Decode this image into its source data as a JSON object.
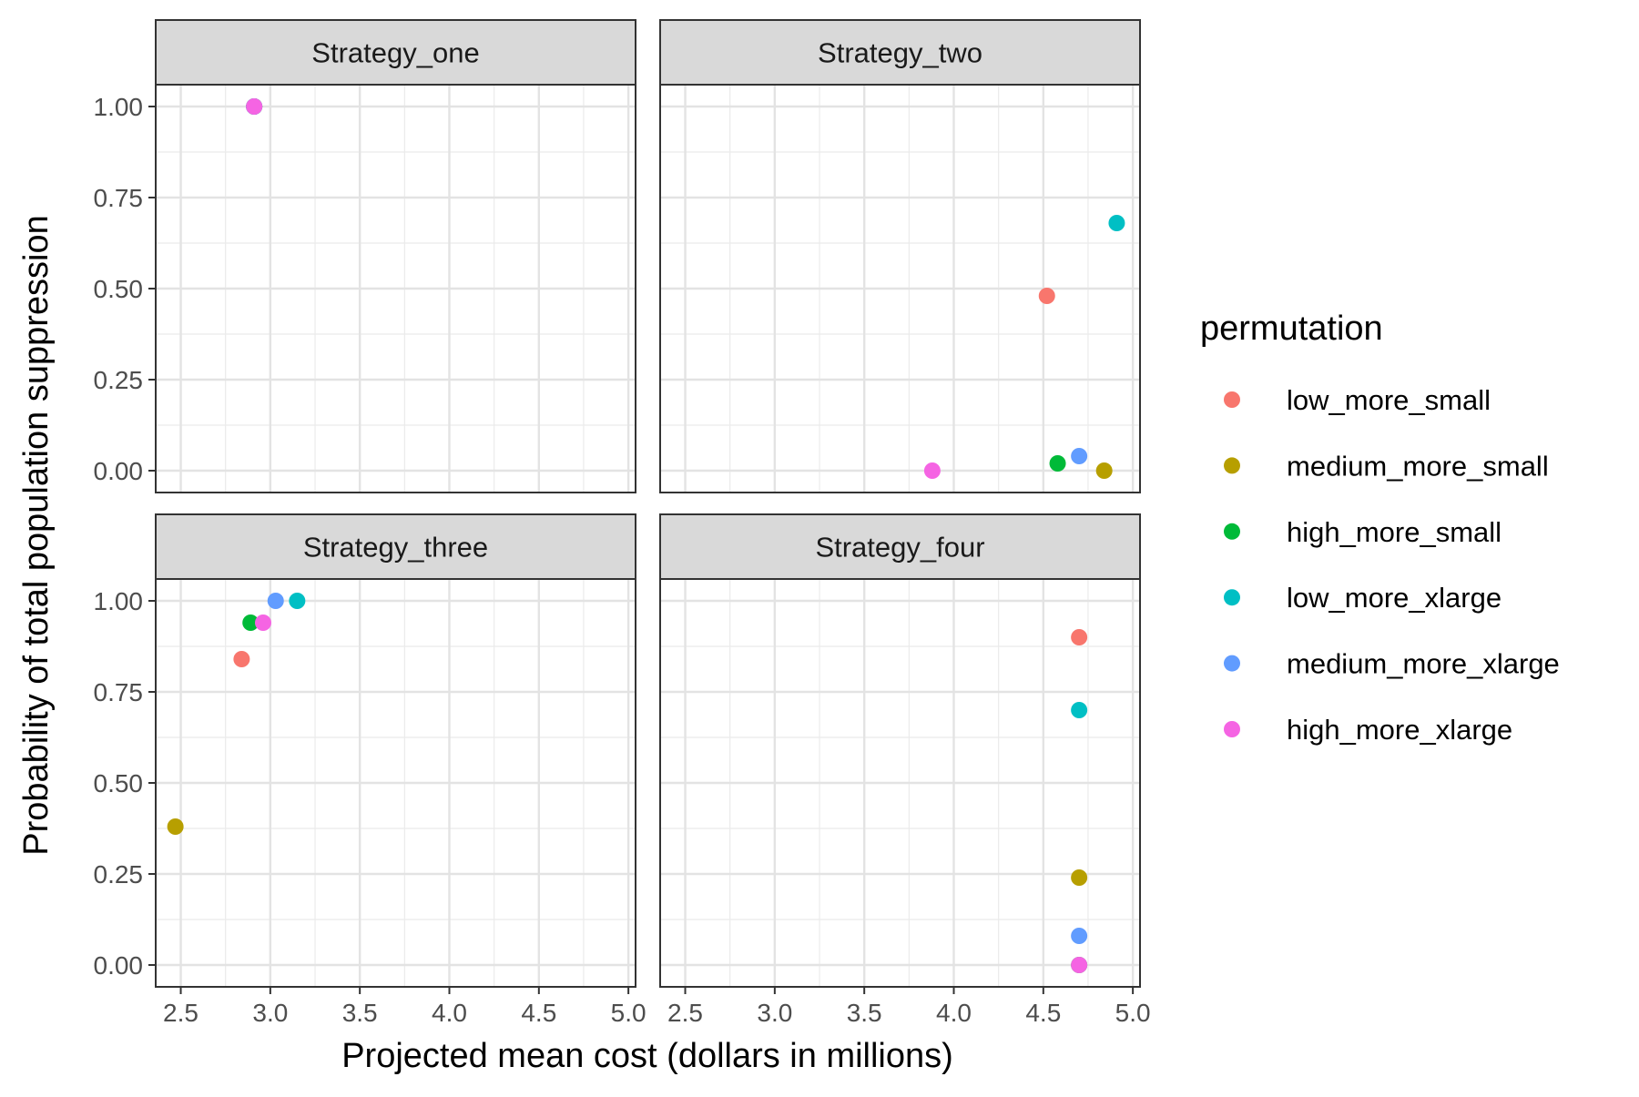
{
  "chart_data": {
    "type": "scatter",
    "facet_layout": "2x2",
    "xlabel": "Projected mean cost (dollars in millions)",
    "ylabel": "Probability of total population suppression",
    "xlim": [
      2.36,
      5.04
    ],
    "ylim": [
      -0.06,
      1.06
    ],
    "x_ticks": [
      "2.5",
      "3.0",
      "3.5",
      "4.0",
      "4.5",
      "5.0"
    ],
    "x_tick_values": [
      2.5,
      3.0,
      3.5,
      4.0,
      4.5,
      5.0
    ],
    "y_ticks": [
      "0.00",
      "0.25",
      "0.50",
      "0.75",
      "1.00"
    ],
    "y_tick_values": [
      0,
      0.25,
      0.5,
      0.75,
      1.0
    ],
    "grid": true,
    "legend": {
      "title": "permutation",
      "placement": "right",
      "entries": [
        {
          "name": "low_more_small",
          "color": "#F8766D"
        },
        {
          "name": "medium_more_small",
          "color": "#B79F00"
        },
        {
          "name": "high_more_small",
          "color": "#00BA38"
        },
        {
          "name": "low_more_xlarge",
          "color": "#00BFC4"
        },
        {
          "name": "medium_more_xlarge",
          "color": "#619CFF"
        },
        {
          "name": "high_more_xlarge",
          "color": "#F564E3"
        }
      ]
    },
    "facets": [
      {
        "title": "Strategy_one",
        "points": [
          {
            "series": "low_more_small",
            "x": 2.91,
            "y": 1.0
          },
          {
            "series": "medium_more_small",
            "x": 2.91,
            "y": 1.0
          },
          {
            "series": "high_more_small",
            "x": 2.91,
            "y": 1.0
          },
          {
            "series": "low_more_xlarge",
            "x": 2.91,
            "y": 1.0
          },
          {
            "series": "medium_more_xlarge",
            "x": 2.91,
            "y": 1.0
          },
          {
            "series": "high_more_xlarge",
            "x": 2.91,
            "y": 1.0
          }
        ]
      },
      {
        "title": "Strategy_two",
        "points": [
          {
            "series": "low_more_small",
            "x": 4.52,
            "y": 0.48
          },
          {
            "series": "medium_more_small",
            "x": 4.84,
            "y": 0.0
          },
          {
            "series": "high_more_small",
            "x": 4.58,
            "y": 0.02
          },
          {
            "series": "low_more_xlarge",
            "x": 4.91,
            "y": 0.68
          },
          {
            "series": "medium_more_xlarge",
            "x": 4.7,
            "y": 0.04
          },
          {
            "series": "high_more_xlarge",
            "x": 3.88,
            "y": 0.0
          }
        ]
      },
      {
        "title": "Strategy_three",
        "points": [
          {
            "series": "low_more_small",
            "x": 2.84,
            "y": 0.84
          },
          {
            "series": "medium_more_small",
            "x": 2.47,
            "y": 0.38
          },
          {
            "series": "high_more_small",
            "x": 2.89,
            "y": 0.94
          },
          {
            "series": "low_more_xlarge",
            "x": 3.15,
            "y": 1.0
          },
          {
            "series": "medium_more_xlarge",
            "x": 3.03,
            "y": 1.0
          },
          {
            "series": "high_more_xlarge",
            "x": 2.96,
            "y": 0.94
          }
        ]
      },
      {
        "title": "Strategy_four",
        "points": [
          {
            "series": "low_more_small",
            "x": 4.7,
            "y": 0.9
          },
          {
            "series": "medium_more_small",
            "x": 4.7,
            "y": 0.24
          },
          {
            "series": "high_more_small",
            "x": 4.7,
            "y": 0.0
          },
          {
            "series": "low_more_xlarge",
            "x": 4.7,
            "y": 0.7
          },
          {
            "series": "medium_more_xlarge",
            "x": 4.7,
            "y": 0.08
          },
          {
            "series": "high_more_xlarge",
            "x": 4.7,
            "y": 0.0
          }
        ]
      }
    ]
  }
}
